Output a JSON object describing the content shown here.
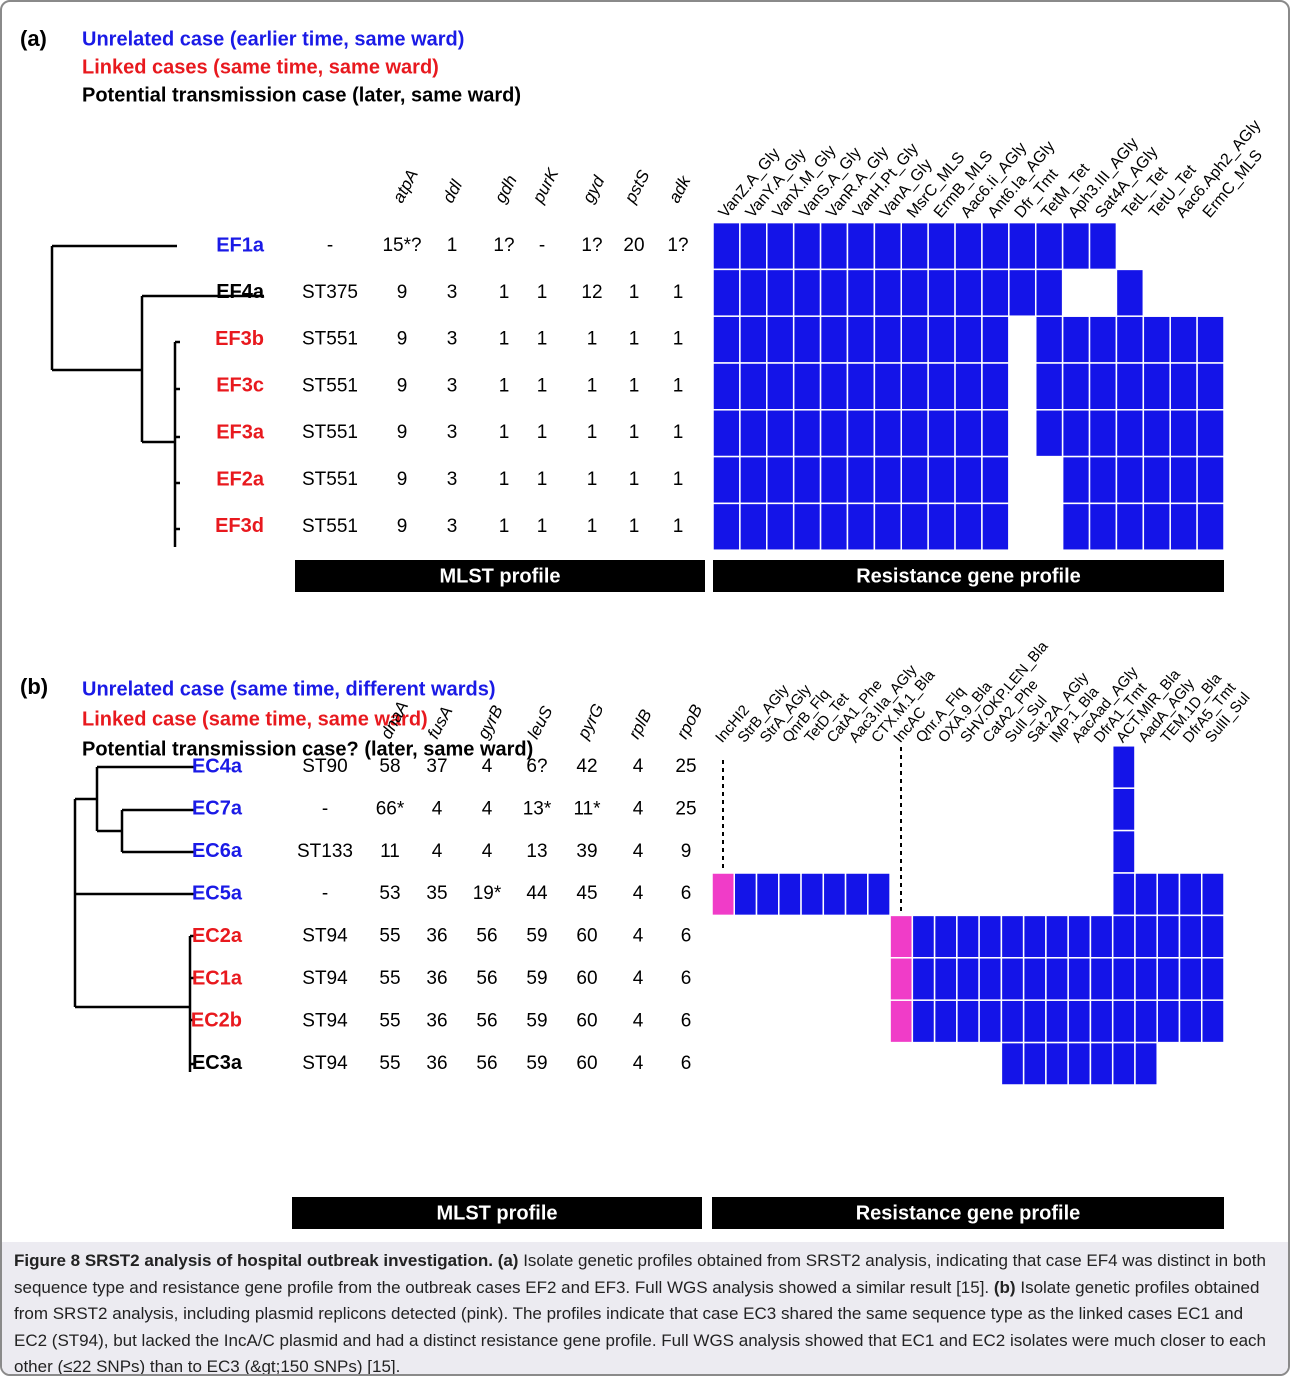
{
  "panels": [
    {
      "label": "(a)",
      "legend": [
        {
          "text": "Unrelated case (earlier time, same ward)",
          "color": "#1a1ae6"
        },
        {
          "text": "Linked cases (same time, same ward)",
          "color": "#e8191e"
        },
        {
          "text": "Potential transmission case (later, same ward)",
          "color": "#000000"
        }
      ],
      "mlst_headers": [
        "atpA",
        "ddl",
        "gdh",
        "purK",
        "gyd",
        "pstS",
        "adk"
      ],
      "gene_headers": [
        "VanZ.A_Gly",
        "VanY.A_Gly",
        "VanX.M_Gly",
        "VanS.A_Gly",
        "VanR.A_Gly",
        "VanH.Pt_Gly",
        "VanA_Gly",
        "MsrC_MLS",
        "ErmB_MLS",
        "Aac6.Ii_AGly",
        "Ant6.Ia_AGly",
        "Dfr_Tmt",
        "TetM_Tet",
        "Aph3.III_AGly",
        "Sat4A_AGly",
        "TetL_Tet",
        "TetU_Tet",
        "Aac6.Aph2_AGly",
        "ErmC_MLS"
      ],
      "cell_color": "#1414e8",
      "rows": [
        {
          "name": "EF1a",
          "color": "#1a1ae6",
          "st": "-",
          "mlst": [
            "15*?",
            "1",
            "1?",
            "-",
            "1?",
            "20",
            "1?"
          ],
          "genes": [
            1,
            1,
            1,
            1,
            1,
            1,
            1,
            1,
            1,
            1,
            1,
            1,
            1,
            1,
            1,
            0,
            0,
            0,
            0
          ]
        },
        {
          "name": "EF4a",
          "color": "#000000",
          "st": "ST375",
          "mlst": [
            "9",
            "3",
            "1",
            "1",
            "12",
            "1",
            "1"
          ],
          "genes": [
            1,
            1,
            1,
            1,
            1,
            1,
            1,
            1,
            1,
            1,
            1,
            1,
            1,
            0,
            0,
            1,
            0,
            0,
            0
          ]
        },
        {
          "name": "EF3b",
          "color": "#e8191e",
          "st": "ST551",
          "mlst": [
            "9",
            "3",
            "1",
            "1",
            "1",
            "1",
            "1"
          ],
          "genes": [
            1,
            1,
            1,
            1,
            1,
            1,
            1,
            1,
            1,
            1,
            1,
            0,
            1,
            1,
            1,
            1,
            1,
            1,
            1
          ]
        },
        {
          "name": "EF3c",
          "color": "#e8191e",
          "st": "ST551",
          "mlst": [
            "9",
            "3",
            "1",
            "1",
            "1",
            "1",
            "1"
          ],
          "genes": [
            1,
            1,
            1,
            1,
            1,
            1,
            1,
            1,
            1,
            1,
            1,
            0,
            1,
            1,
            1,
            1,
            1,
            1,
            1
          ]
        },
        {
          "name": "EF3a",
          "color": "#e8191e",
          "st": "ST551",
          "mlst": [
            "9",
            "3",
            "1",
            "1",
            "1",
            "1",
            "1"
          ],
          "genes": [
            1,
            1,
            1,
            1,
            1,
            1,
            1,
            1,
            1,
            1,
            1,
            0,
            1,
            1,
            1,
            1,
            1,
            1,
            1
          ]
        },
        {
          "name": "EF2a",
          "color": "#e8191e",
          "st": "ST551",
          "mlst": [
            "9",
            "3",
            "1",
            "1",
            "1",
            "1",
            "1"
          ],
          "genes": [
            1,
            1,
            1,
            1,
            1,
            1,
            1,
            1,
            1,
            1,
            1,
            0,
            0,
            1,
            1,
            1,
            1,
            1,
            1
          ]
        },
        {
          "name": "EF3d",
          "color": "#e8191e",
          "st": "ST551",
          "mlst": [
            "9",
            "3",
            "1",
            "1",
            "1",
            "1",
            "1"
          ],
          "genes": [
            1,
            1,
            1,
            1,
            1,
            1,
            1,
            1,
            1,
            1,
            1,
            0,
            0,
            1,
            1,
            1,
            1,
            1,
            1
          ]
        }
      ],
      "footer": [
        "MLST profile",
        "Resistance gene profile"
      ]
    },
    {
      "label": "(b)",
      "legend": [
        {
          "text": "Unrelated case (same time, different wards)",
          "color": "#1a1ae6"
        },
        {
          "text": "Linked case (same time, same ward)",
          "color": "#e8191e"
        },
        {
          "text": "Potential transmission case? (later, same ward)",
          "color": "#000000"
        }
      ],
      "mlst_headers": [
        "dnaA",
        "fusA",
        "gyrB",
        "leuS",
        "pyrG",
        "rplB",
        "rpoB"
      ],
      "gene_headers": [
        "IncHI2",
        "StrB_AGly",
        "StrA_AGly",
        "QnrB_Flq",
        "TetD_Tet",
        "CatA1_Phe",
        "Aac3.IIa_AGly",
        "CTX.M.1_Bla",
        "IncAC",
        "Qnr.A_Flq",
        "OXA.9_Bla",
        "SHV.OKP.LEN_Bla",
        "CatA2_Phe",
        "SulI_Sul",
        "Sat.2A_AGly",
        "IMP.1_Bla",
        "AacAad_AGly",
        "DfrA1_Tmt",
        "ACT.MIR_Bla",
        "AadA_AGly",
        "TEM.1D_Bla",
        "DfrA5_Tmt",
        "SulII_Sul"
      ],
      "cell_color": "#1414e8",
      "column_colors": [
        "#f03cc8",
        "#1414e8",
        "#1414e8",
        "#1414e8",
        "#1414e8",
        "#1414e8",
        "#1414e8",
        "#1414e8",
        "#f03cc8",
        "#1414e8",
        "#1414e8",
        "#1414e8",
        "#1414e8",
        "#1414e8",
        "#1414e8",
        "#1414e8",
        "#1414e8",
        "#1414e8",
        "#1414e8",
        "#1414e8",
        "#1414e8",
        "#1414e8",
        "#1414e8"
      ],
      "rows": [
        {
          "name": "EC4a",
          "color": "#1a1ae6",
          "st": "ST90",
          "mlst": [
            "58",
            "37",
            "4",
            "6?",
            "42",
            "4",
            "25"
          ],
          "genes": [
            0,
            0,
            0,
            0,
            0,
            0,
            0,
            0,
            0,
            0,
            0,
            0,
            0,
            0,
            0,
            0,
            0,
            0,
            1,
            0,
            0,
            0,
            0
          ]
        },
        {
          "name": "EC7a",
          "color": "#1a1ae6",
          "st": "-",
          "mlst": [
            "66*",
            "4",
            "4",
            "13*",
            "11*",
            "4",
            "25"
          ],
          "genes": [
            0,
            0,
            0,
            0,
            0,
            0,
            0,
            0,
            0,
            0,
            0,
            0,
            0,
            0,
            0,
            0,
            0,
            0,
            1,
            0,
            0,
            0,
            0
          ]
        },
        {
          "name": "EC6a",
          "color": "#1a1ae6",
          "st": "ST133",
          "mlst": [
            "11",
            "4",
            "4",
            "13",
            "39",
            "4",
            "9"
          ],
          "genes": [
            0,
            0,
            0,
            0,
            0,
            0,
            0,
            0,
            0,
            0,
            0,
            0,
            0,
            0,
            0,
            0,
            0,
            0,
            1,
            0,
            0,
            0,
            0
          ]
        },
        {
          "name": "EC5a",
          "color": "#1a1ae6",
          "st": "-",
          "mlst": [
            "53",
            "35",
            "19*",
            "44",
            "45",
            "4",
            "6"
          ],
          "genes": [
            1,
            1,
            1,
            1,
            1,
            1,
            1,
            1,
            0,
            0,
            0,
            0,
            0,
            0,
            0,
            0,
            0,
            0,
            1,
            1,
            1,
            1,
            1
          ]
        },
        {
          "name": "EC2a",
          "color": "#e8191e",
          "st": "ST94",
          "mlst": [
            "55",
            "36",
            "56",
            "59",
            "60",
            "4",
            "6"
          ],
          "genes": [
            0,
            0,
            0,
            0,
            0,
            0,
            0,
            0,
            1,
            1,
            1,
            1,
            1,
            1,
            1,
            1,
            1,
            1,
            1,
            1,
            1,
            1,
            1
          ]
        },
        {
          "name": "EC1a",
          "color": "#e8191e",
          "st": "ST94",
          "mlst": [
            "55",
            "36",
            "56",
            "59",
            "60",
            "4",
            "6"
          ],
          "genes": [
            0,
            0,
            0,
            0,
            0,
            0,
            0,
            0,
            1,
            1,
            1,
            1,
            1,
            1,
            1,
            1,
            1,
            1,
            1,
            1,
            1,
            1,
            1
          ]
        },
        {
          "name": "EC2b",
          "color": "#e8191e",
          "st": "ST94",
          "mlst": [
            "55",
            "36",
            "56",
            "59",
            "60",
            "4",
            "6"
          ],
          "genes": [
            0,
            0,
            0,
            0,
            0,
            0,
            0,
            0,
            1,
            1,
            1,
            1,
            1,
            1,
            1,
            1,
            1,
            1,
            1,
            1,
            1,
            1,
            1
          ]
        },
        {
          "name": "EC3a",
          "color": "#000000",
          "st": "ST94",
          "mlst": [
            "55",
            "36",
            "56",
            "59",
            "60",
            "4",
            "6"
          ],
          "genes": [
            0,
            0,
            0,
            0,
            0,
            0,
            0,
            0,
            0,
            0,
            0,
            0,
            0,
            1,
            1,
            1,
            1,
            1,
            1,
            1,
            0,
            0,
            0
          ]
        }
      ],
      "footer": [
        "MLST profile",
        "Resistance gene profile"
      ]
    }
  ],
  "caption": {
    "title": "Figure 8 SRST2 analysis of hospital outbreak investigation.",
    "parts": [
      {
        "label": "(a)",
        "text": "Isolate genetic profiles obtained from SRST2 analysis, indicating that case EF4 was distinct in both sequence type and resistance gene profile from the outbreak cases EF2 and EF3. Full WGS analysis showed a similar result [15]."
      },
      {
        "label": "(b)",
        "text": "Isolate genetic profiles obtained from SRST2 analysis, including plasmid replicons detected (pink). The profiles indicate that case EC3 shared the same sequence type as the linked cases EC1 and EC2 (ST94), but lacked the IncA/C plasmid and had a distinct resistance gene profile. Full WGS analysis showed that EC1 and EC2 isolates were much closer to each other (≤22 SNPs) than to EC3 (&gt;150 SNPs) [15]."
      }
    ]
  }
}
